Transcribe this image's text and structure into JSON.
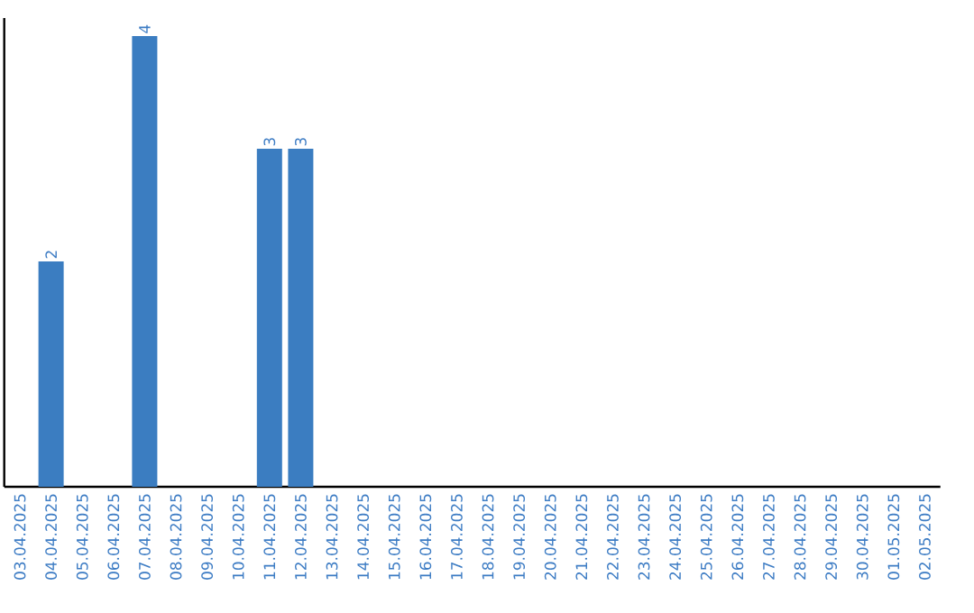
{
  "chart_data": {
    "type": "bar",
    "color": "#3b7dc1",
    "categories": [
      "03.04.2025",
      "04.04.2025",
      "05.04.2025",
      "06.04.2025",
      "07.04.2025",
      "08.04.2025",
      "09.04.2025",
      "10.04.2025",
      "11.04.2025",
      "12.04.2025",
      "13.04.2025",
      "14.04.2025",
      "15.04.2025",
      "16.04.2025",
      "17.04.2025",
      "18.04.2025",
      "19.04.2025",
      "20.04.2025",
      "21.04.2025",
      "22.04.2025",
      "23.04.2025",
      "24.04.2025",
      "25.04.2025",
      "26.04.2025",
      "27.04.2025",
      "28.04.2025",
      "29.04.2025",
      "30.04.2025",
      "01.05.2025",
      "02.05.2025"
    ],
    "values": [
      0,
      2,
      0,
      0,
      4,
      0,
      0,
      0,
      3,
      3,
      0,
      0,
      0,
      0,
      0,
      0,
      0,
      0,
      0,
      0,
      0,
      0,
      0,
      0,
      0,
      0,
      0,
      0,
      0,
      0
    ],
    "value_labels": [
      null,
      "2",
      null,
      null,
      "4",
      null,
      null,
      null,
      "3",
      "3",
      null,
      null,
      null,
      null,
      null,
      null,
      null,
      null,
      null,
      null,
      null,
      null,
      null,
      null,
      null,
      null,
      null,
      null,
      null,
      null
    ]
  }
}
